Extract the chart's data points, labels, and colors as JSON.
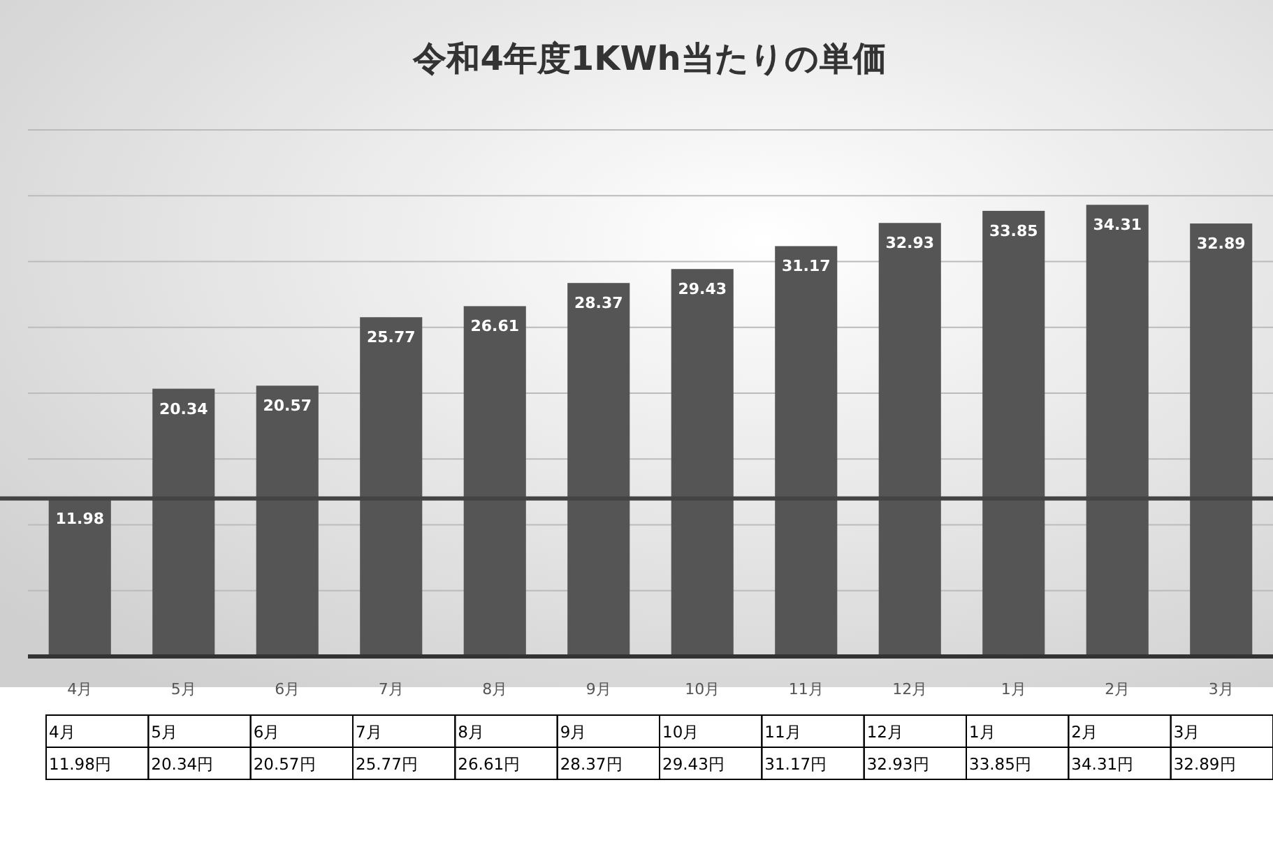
{
  "chart_data": {
    "type": "bar",
    "title": "令和4年度1KWh当たりの単価",
    "categories": [
      "4月",
      "5月",
      "6月",
      "7月",
      "8月",
      "9月",
      "10月",
      "11月",
      "12月",
      "1月",
      "2月",
      "3月"
    ],
    "values": [
      11.98,
      20.34,
      20.57,
      25.77,
      26.61,
      28.37,
      29.43,
      31.17,
      32.93,
      33.85,
      34.31,
      32.89
    ],
    "color": "#555555",
    "data_labels": true,
    "grid": "y",
    "tick_labels": "x",
    "ylim": [
      0,
      40
    ],
    "yticks": [
      {
        "value": 0,
        "label": null
      },
      {
        "value": 5,
        "label": null
      },
      {
        "value": 10,
        "label": null
      },
      {
        "value": 15,
        "label": null
      },
      {
        "value": 20,
        "label": null
      },
      {
        "value": 25,
        "label": null
      },
      {
        "value": 30,
        "label": null
      },
      {
        "value": 35,
        "label": null
      },
      {
        "value": 40,
        "label": null
      }
    ],
    "ref_lines": [
      {
        "axis": "y",
        "value": 12,
        "color": "#444444"
      }
    ],
    "annotations": [
      "11.98円",
      "20.34円",
      "20.57円",
      "25.77円",
      "26.61円",
      "28.37円",
      "29.43円",
      "31.17円",
      "32.93円",
      "33.85円",
      "34.31円",
      "32.89円"
    ]
  }
}
